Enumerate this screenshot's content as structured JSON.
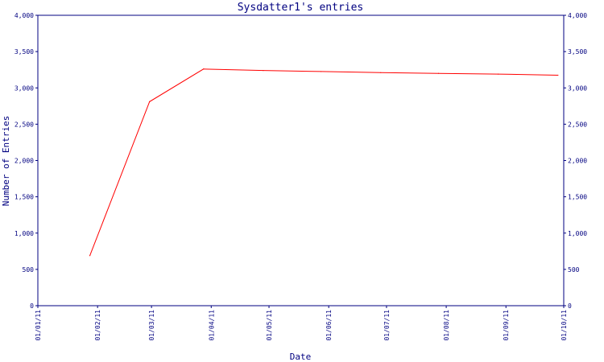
{
  "chart_data": {
    "type": "line",
    "title": "Sysdatter1's entries",
    "xlabel": "Date",
    "ylabel": "Number of Entries",
    "x_tick_labels": [
      "01/01/11",
      "01/02/11",
      "01/03/11",
      "01/04/11",
      "01/05/11",
      "01/06/11",
      "01/07/11",
      "01/08/11",
      "01/09/11",
      "01/10/11"
    ],
    "y_ticks": [
      0,
      500,
      1000,
      1500,
      2000,
      2500,
      3000,
      3500,
      4000
    ],
    "y_tick_labels": [
      "0",
      "500",
      "1,000",
      "1,500",
      "2,000",
      "2,500",
      "3,000",
      "3,500",
      "4,000"
    ],
    "ylim": [
      0,
      4000
    ],
    "xlim": [
      "2011-01-01",
      "2011-10-01"
    ],
    "grid": false,
    "series": [
      {
        "color": "#ff0000",
        "points": [
          {
            "x": "2011-01-28",
            "y": 690
          },
          {
            "x": "2011-02-28",
            "y": 2810
          },
          {
            "x": "2011-03-28",
            "y": 3260
          },
          {
            "x": "2011-04-28",
            "y": 3240
          },
          {
            "x": "2011-05-28",
            "y": 3225
          },
          {
            "x": "2011-06-28",
            "y": 3210
          },
          {
            "x": "2011-07-28",
            "y": 3200
          },
          {
            "x": "2011-08-28",
            "y": 3190
          },
          {
            "x": "2011-09-28",
            "y": 3175
          }
        ]
      }
    ],
    "colors": {
      "axis": "#000080",
      "text": "#000080",
      "line": "#ff0000",
      "background": "#ffffff"
    }
  }
}
